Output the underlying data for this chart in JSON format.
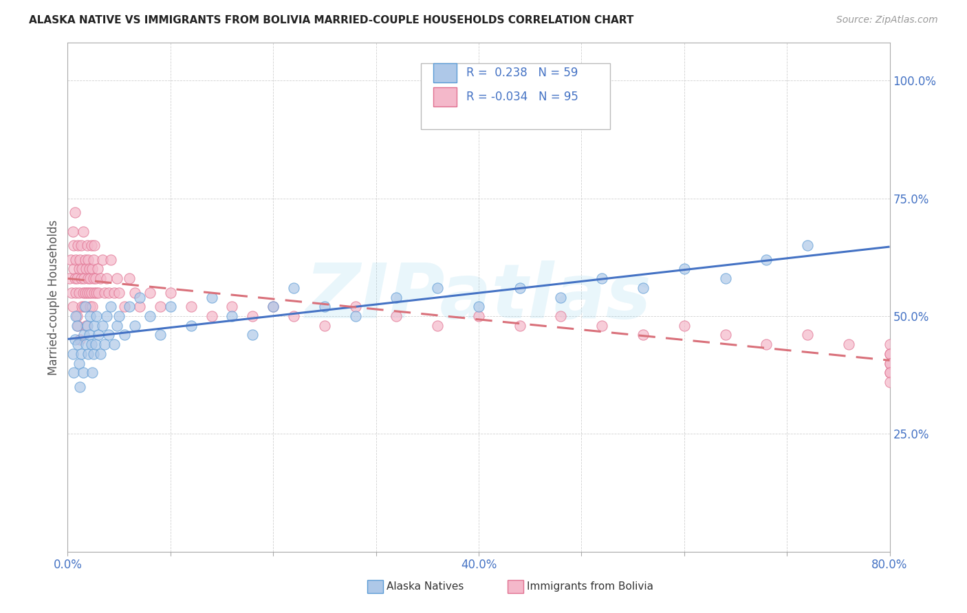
{
  "title": "ALASKA NATIVE VS IMMIGRANTS FROM BOLIVIA MARRIED-COUPLE HOUSEHOLDS CORRELATION CHART",
  "source": "Source: ZipAtlas.com",
  "ylabel": "Married-couple Households",
  "xlim": [
    0.0,
    0.8
  ],
  "ylim": [
    0.0,
    1.08
  ],
  "ytick_positions": [
    0.0,
    0.25,
    0.5,
    0.75,
    1.0
  ],
  "xtick_positions": [
    0.0,
    0.1,
    0.2,
    0.3,
    0.4,
    0.5,
    0.6,
    0.7,
    0.8
  ],
  "watermark": "ZIPatlas",
  "color_blue_fill": "#aec8e8",
  "color_blue_edge": "#5b9bd5",
  "color_pink_fill": "#f4b8ca",
  "color_pink_edge": "#e07090",
  "color_blue_text": "#4472c4",
  "trend_blue": "#4472c4",
  "trend_pink": "#d9707a",
  "grid_color": "#d0d0d0",
  "alaska_x": [
    0.005,
    0.006,
    0.007,
    0.008,
    0.009,
    0.01,
    0.011,
    0.012,
    0.013,
    0.015,
    0.016,
    0.017,
    0.018,
    0.019,
    0.02,
    0.021,
    0.022,
    0.023,
    0.024,
    0.025,
    0.026,
    0.027,
    0.028,
    0.03,
    0.032,
    0.034,
    0.036,
    0.038,
    0.04,
    0.042,
    0.045,
    0.048,
    0.05,
    0.055,
    0.06,
    0.065,
    0.07,
    0.08,
    0.09,
    0.1,
    0.12,
    0.14,
    0.16,
    0.18,
    0.2,
    0.22,
    0.25,
    0.28,
    0.32,
    0.36,
    0.4,
    0.44,
    0.48,
    0.52,
    0.56,
    0.6,
    0.64,
    0.68,
    0.72
  ],
  "alaska_y": [
    0.42,
    0.38,
    0.45,
    0.5,
    0.48,
    0.44,
    0.4,
    0.35,
    0.42,
    0.38,
    0.46,
    0.52,
    0.44,
    0.48,
    0.42,
    0.46,
    0.5,
    0.44,
    0.38,
    0.42,
    0.48,
    0.44,
    0.5,
    0.46,
    0.42,
    0.48,
    0.44,
    0.5,
    0.46,
    0.52,
    0.44,
    0.48,
    0.5,
    0.46,
    0.52,
    0.48,
    0.54,
    0.5,
    0.46,
    0.52,
    0.48,
    0.54,
    0.5,
    0.46,
    0.52,
    0.56,
    0.52,
    0.5,
    0.54,
    0.56,
    0.52,
    0.56,
    0.54,
    0.58,
    0.56,
    0.6,
    0.58,
    0.62,
    0.65
  ],
  "bolivia_x": [
    0.002,
    0.003,
    0.004,
    0.005,
    0.005,
    0.006,
    0.006,
    0.007,
    0.007,
    0.008,
    0.008,
    0.009,
    0.009,
    0.01,
    0.01,
    0.011,
    0.011,
    0.012,
    0.012,
    0.013,
    0.013,
    0.014,
    0.014,
    0.015,
    0.015,
    0.016,
    0.016,
    0.017,
    0.017,
    0.018,
    0.018,
    0.019,
    0.019,
    0.02,
    0.02,
    0.021,
    0.021,
    0.022,
    0.022,
    0.023,
    0.023,
    0.024,
    0.024,
    0.025,
    0.025,
    0.026,
    0.026,
    0.027,
    0.028,
    0.029,
    0.03,
    0.032,
    0.034,
    0.036,
    0.038,
    0.04,
    0.042,
    0.045,
    0.048,
    0.05,
    0.055,
    0.06,
    0.065,
    0.07,
    0.08,
    0.09,
    0.1,
    0.12,
    0.14,
    0.16,
    0.18,
    0.2,
    0.22,
    0.25,
    0.28,
    0.32,
    0.36,
    0.4,
    0.44,
    0.48,
    0.52,
    0.56,
    0.6,
    0.64,
    0.68,
    0.72,
    0.76,
    0.8,
    0.84,
    0.88,
    0.92,
    0.96,
    1.0,
    1.04,
    1.08
  ],
  "bolivia_y": [
    0.58,
    0.62,
    0.55,
    0.68,
    0.52,
    0.6,
    0.65,
    0.58,
    0.72,
    0.55,
    0.62,
    0.5,
    0.58,
    0.65,
    0.48,
    0.6,
    0.55,
    0.62,
    0.45,
    0.58,
    0.65,
    0.52,
    0.6,
    0.55,
    0.68,
    0.58,
    0.52,
    0.62,
    0.55,
    0.6,
    0.48,
    0.65,
    0.55,
    0.62,
    0.58,
    0.55,
    0.6,
    0.52,
    0.58,
    0.65,
    0.55,
    0.6,
    0.52,
    0.58,
    0.62,
    0.55,
    0.65,
    0.58,
    0.55,
    0.6,
    0.55,
    0.58,
    0.62,
    0.55,
    0.58,
    0.55,
    0.62,
    0.55,
    0.58,
    0.55,
    0.52,
    0.58,
    0.55,
    0.52,
    0.55,
    0.52,
    0.55,
    0.52,
    0.5,
    0.52,
    0.5,
    0.52,
    0.5,
    0.48,
    0.52,
    0.5,
    0.48,
    0.5,
    0.48,
    0.5,
    0.48,
    0.46,
    0.48,
    0.46,
    0.44,
    0.46,
    0.44,
    0.42,
    0.44,
    0.42,
    0.4,
    0.38,
    0.4,
    0.38,
    0.36
  ]
}
